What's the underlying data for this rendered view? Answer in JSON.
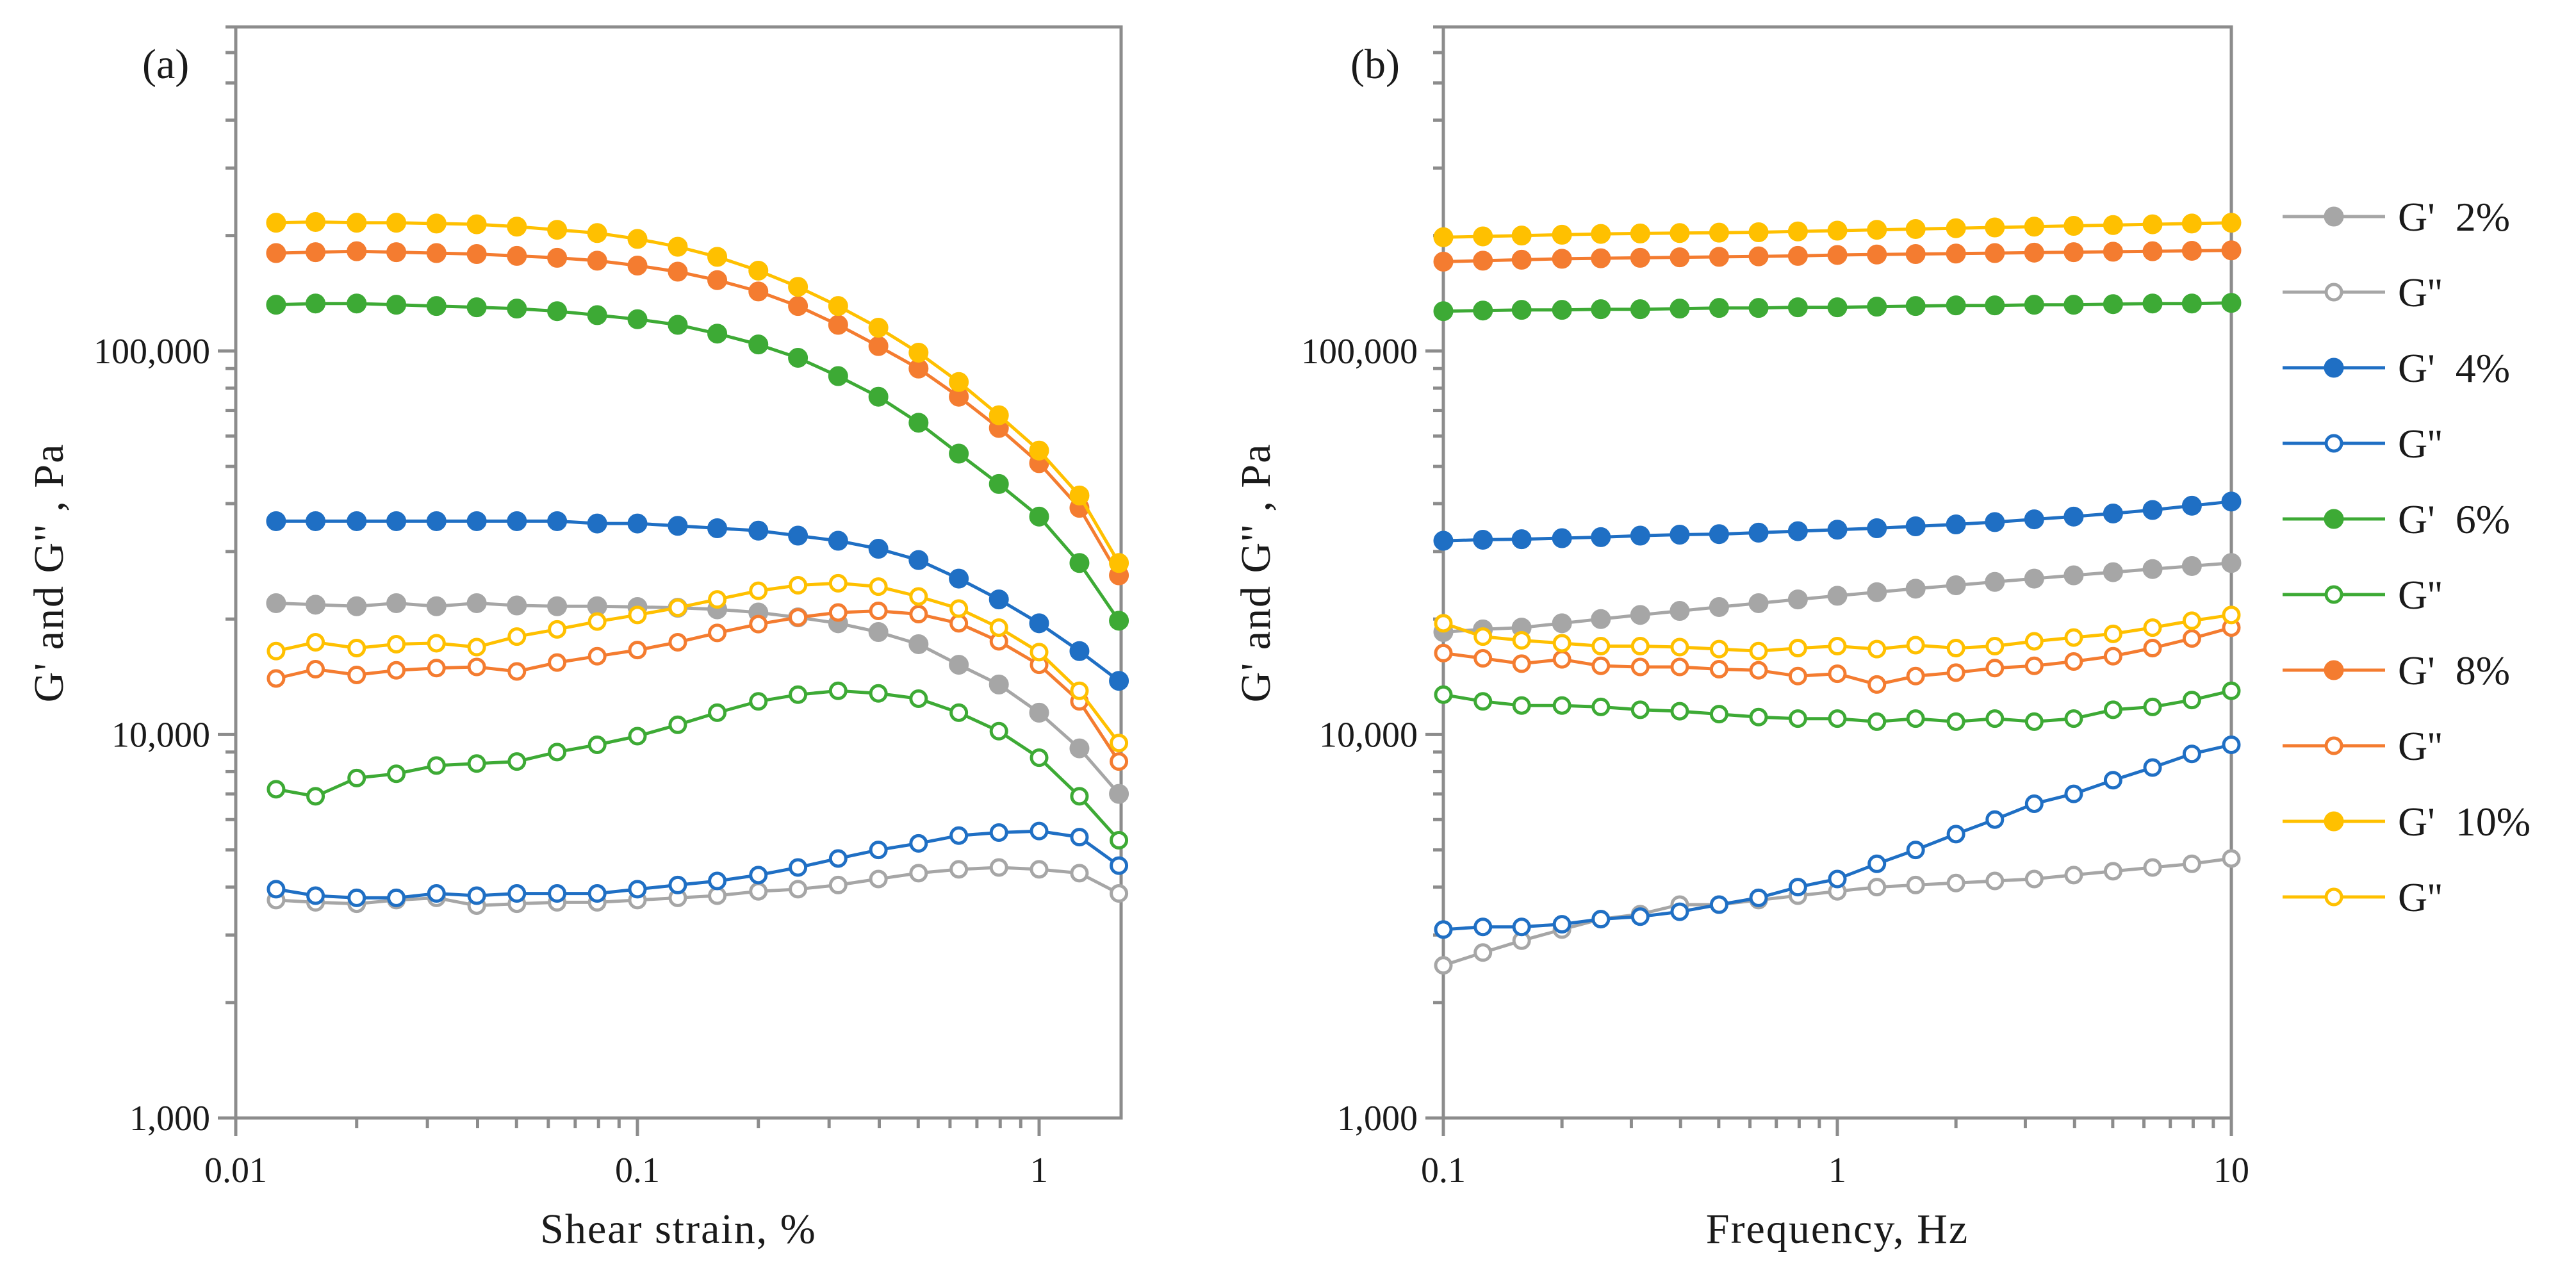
{
  "chart_data": [
    {
      "type": "line",
      "panel_label": "(a)",
      "xlabel": "Shear strain, %",
      "ylabel": "G' and G'' , Pa",
      "xscale": "log",
      "yscale": "log",
      "xlim": [
        0.01,
        1.6
      ],
      "ylim": [
        1000,
        700000
      ],
      "x_ticks": [
        0.01,
        0.1,
        1
      ],
      "x_tick_labels": [
        "0.01",
        "0.1",
        "1"
      ],
      "y_ticks": [
        1000,
        10000,
        100000
      ],
      "y_tick_labels": [
        "1,000",
        "10,000",
        "100,000"
      ],
      "x": [
        0.0126,
        0.0158,
        0.02,
        0.0251,
        0.0316,
        0.0398,
        0.0501,
        0.0631,
        0.0794,
        0.1,
        0.126,
        0.158,
        0.2,
        0.251,
        0.316,
        0.398,
        0.501,
        0.631,
        0.794,
        1.0,
        1.26,
        1.58
      ],
      "series": [
        {
          "name": "G'  2%",
          "color": "#a6a6a6",
          "marker": "filled",
          "values": [
            22000,
            21800,
            21600,
            22000,
            21600,
            22000,
            21700,
            21600,
            21600,
            21500,
            21400,
            21200,
            20800,
            20200,
            19500,
            18500,
            17200,
            15200,
            13500,
            11400,
            9200,
            7000
          ]
        },
        {
          "name": "G''",
          "color": "#a6a6a6",
          "marker": "open",
          "values": [
            3700,
            3650,
            3620,
            3700,
            3750,
            3580,
            3620,
            3650,
            3650,
            3700,
            3750,
            3800,
            3900,
            3950,
            4050,
            4200,
            4350,
            4450,
            4500,
            4450,
            4350,
            3850
          ]
        },
        {
          "name": "G'  4%",
          "color": "#1f6fc4",
          "marker": "filled",
          "values": [
            36000,
            36000,
            36000,
            36000,
            36000,
            36000,
            36000,
            36000,
            35500,
            35500,
            35000,
            34500,
            34000,
            33000,
            32000,
            30500,
            28500,
            25500,
            22500,
            19500,
            16500,
            13800
          ]
        },
        {
          "name": "G''",
          "color": "#1f6fc4",
          "marker": "open",
          "values": [
            3950,
            3800,
            3750,
            3750,
            3850,
            3800,
            3850,
            3850,
            3850,
            3950,
            4050,
            4150,
            4300,
            4500,
            4750,
            5000,
            5200,
            5450,
            5550,
            5600,
            5400,
            4550
          ]
        },
        {
          "name": "G'  6%",
          "color": "#3daa35",
          "marker": "filled",
          "values": [
            132000,
            133000,
            133000,
            132000,
            131000,
            130000,
            129000,
            127000,
            124000,
            121000,
            117000,
            111000,
            104000,
            96000,
            86000,
            76000,
            65000,
            54000,
            45000,
            37000,
            28000,
            19800
          ]
        },
        {
          "name": "G''",
          "color": "#3daa35",
          "marker": "open",
          "values": [
            7200,
            6900,
            7700,
            7900,
            8300,
            8400,
            8500,
            9000,
            9400,
            9900,
            10600,
            11400,
            12200,
            12700,
            13000,
            12800,
            12400,
            11400,
            10200,
            8700,
            6900,
            5300
          ]
        },
        {
          "name": "G'  8%",
          "color": "#f47c30",
          "marker": "filled",
          "values": [
            180000,
            181000,
            182000,
            181000,
            180000,
            179000,
            177000,
            175000,
            172000,
            167000,
            161000,
            153000,
            143000,
            131000,
            117000,
            103000,
            90000,
            76000,
            63000,
            51000,
            39000,
            26000
          ]
        },
        {
          "name": "G''",
          "color": "#f47c30",
          "marker": "open",
          "values": [
            14000,
            14800,
            14300,
            14700,
            14900,
            15000,
            14600,
            15400,
            16000,
            16600,
            17400,
            18400,
            19400,
            20200,
            20800,
            21000,
            20600,
            19500,
            17500,
            15200,
            12200,
            8500
          ]
        },
        {
          "name": "G'  10%",
          "color": "#ffc000",
          "marker": "filled",
          "values": [
            216000,
            217000,
            216000,
            216000,
            215000,
            214000,
            211000,
            207000,
            203000,
            196000,
            187000,
            176000,
            162000,
            147000,
            131000,
            115000,
            99000,
            83000,
            68000,
            55000,
            42000,
            28000
          ]
        },
        {
          "name": "G''",
          "color": "#ffc000",
          "marker": "open",
          "values": [
            16500,
            17400,
            16800,
            17200,
            17300,
            16900,
            18000,
            18800,
            19700,
            20500,
            21400,
            22500,
            23700,
            24500,
            24800,
            24300,
            22900,
            21300,
            19000,
            16400,
            13000,
            9500
          ]
        }
      ]
    },
    {
      "type": "line",
      "panel_label": "(b)",
      "xlabel": "Frequency, Hz",
      "ylabel": "G' and G'' , Pa",
      "xscale": "log",
      "yscale": "log",
      "xlim": [
        0.1,
        10
      ],
      "ylim": [
        1000,
        700000
      ],
      "x_ticks": [
        0.1,
        1,
        10
      ],
      "x_tick_labels": [
        "0.1",
        "1",
        "10"
      ],
      "y_ticks": [
        1000,
        10000,
        100000
      ],
      "y_tick_labels": [
        "1,000",
        "10,000",
        "100,000"
      ],
      "x": [
        0.1,
        0.126,
        0.158,
        0.2,
        0.251,
        0.316,
        0.398,
        0.501,
        0.631,
        0.794,
        1.0,
        1.26,
        1.58,
        2.0,
        2.51,
        3.16,
        3.98,
        5.01,
        6.31,
        7.94,
        10.0
      ],
      "series": [
        {
          "name": "G'  2%",
          "color": "#a6a6a6",
          "marker": "filled",
          "values": [
            18500,
            18800,
            19000,
            19500,
            20000,
            20500,
            21000,
            21500,
            22000,
            22500,
            23000,
            23500,
            24000,
            24500,
            25000,
            25500,
            26000,
            26500,
            27000,
            27500,
            28000
          ]
        },
        {
          "name": "G''",
          "color": "#a6a6a6",
          "marker": "open",
          "values": [
            2500,
            2700,
            2900,
            3100,
            3300,
            3400,
            3600,
            3600,
            3700,
            3800,
            3900,
            4000,
            4050,
            4100,
            4150,
            4200,
            4300,
            4400,
            4500,
            4600,
            4750
          ]
        },
        {
          "name": "G'  4%",
          "color": "#1f6fc4",
          "marker": "filled",
          "values": [
            32000,
            32200,
            32300,
            32500,
            32700,
            33000,
            33200,
            33300,
            33600,
            33900,
            34200,
            34500,
            34900,
            35300,
            35800,
            36400,
            37000,
            37700,
            38500,
            39500,
            40500
          ]
        },
        {
          "name": "G''",
          "color": "#1f6fc4",
          "marker": "open",
          "values": [
            3100,
            3150,
            3150,
            3200,
            3300,
            3350,
            3450,
            3600,
            3750,
            4000,
            4200,
            4600,
            5000,
            5500,
            6000,
            6600,
            7000,
            7600,
            8200,
            8900,
            9400
          ]
        },
        {
          "name": "G'  6%",
          "color": "#3daa35",
          "marker": "filled",
          "values": [
            127000,
            127500,
            128000,
            128000,
            128500,
            128500,
            129000,
            129500,
            129500,
            130000,
            130000,
            130500,
            131000,
            131500,
            131500,
            132000,
            132000,
            132500,
            133000,
            133000,
            133500
          ]
        },
        {
          "name": "G''",
          "color": "#3daa35",
          "marker": "open",
          "values": [
            12700,
            12200,
            11900,
            11900,
            11800,
            11600,
            11500,
            11300,
            11100,
            11000,
            11000,
            10800,
            11000,
            10800,
            11000,
            10800,
            11000,
            11600,
            11800,
            12300,
            13000
          ]
        },
        {
          "name": "G'  8%",
          "color": "#f47c30",
          "marker": "filled",
          "values": [
            171000,
            172000,
            173000,
            174000,
            174500,
            175000,
            175500,
            176000,
            176500,
            177000,
            178000,
            178500,
            179000,
            179500,
            180000,
            180500,
            181000,
            181500,
            182000,
            182500,
            183000
          ]
        },
        {
          "name": "G''",
          "color": "#f47c30",
          "marker": "open",
          "values": [
            16300,
            15800,
            15300,
            15700,
            15100,
            15000,
            15000,
            14800,
            14700,
            14200,
            14400,
            13500,
            14200,
            14500,
            14900,
            15100,
            15500,
            16000,
            16800,
            17800,
            19000
          ]
        },
        {
          "name": "G'  10%",
          "color": "#ffc000",
          "marker": "filled",
          "values": [
            198000,
            199000,
            200000,
            201000,
            202000,
            202500,
            203000,
            203500,
            204000,
            205000,
            206000,
            207000,
            208000,
            209000,
            210000,
            211000,
            212000,
            213000,
            214000,
            215000,
            216000
          ]
        },
        {
          "name": "G''",
          "color": "#ffc000",
          "marker": "open",
          "values": [
            19500,
            18000,
            17600,
            17300,
            17000,
            17000,
            16900,
            16700,
            16500,
            16800,
            17000,
            16700,
            17100,
            16800,
            17000,
            17500,
            17900,
            18300,
            19000,
            19800,
            20500
          ]
        }
      ]
    }
  ],
  "legend": {
    "position": "right",
    "entries": [
      {
        "label": "G'  2%",
        "color": "#a6a6a6",
        "marker": "filled"
      },
      {
        "label": "G''",
        "color": "#a6a6a6",
        "marker": "open"
      },
      {
        "label": "G'  4%",
        "color": "#1f6fc4",
        "marker": "filled"
      },
      {
        "label": "G''",
        "color": "#1f6fc4",
        "marker": "open"
      },
      {
        "label": "G'  6%",
        "color": "#3daa35",
        "marker": "filled"
      },
      {
        "label": "G''",
        "color": "#3daa35",
        "marker": "open"
      },
      {
        "label": "G'  8%",
        "color": "#f47c30",
        "marker": "filled"
      },
      {
        "label": "G''",
        "color": "#f47c30",
        "marker": "open"
      },
      {
        "label": "G'  10%",
        "color": "#ffc000",
        "marker": "filled"
      },
      {
        "label": "G''",
        "color": "#ffc000",
        "marker": "open"
      }
    ]
  }
}
